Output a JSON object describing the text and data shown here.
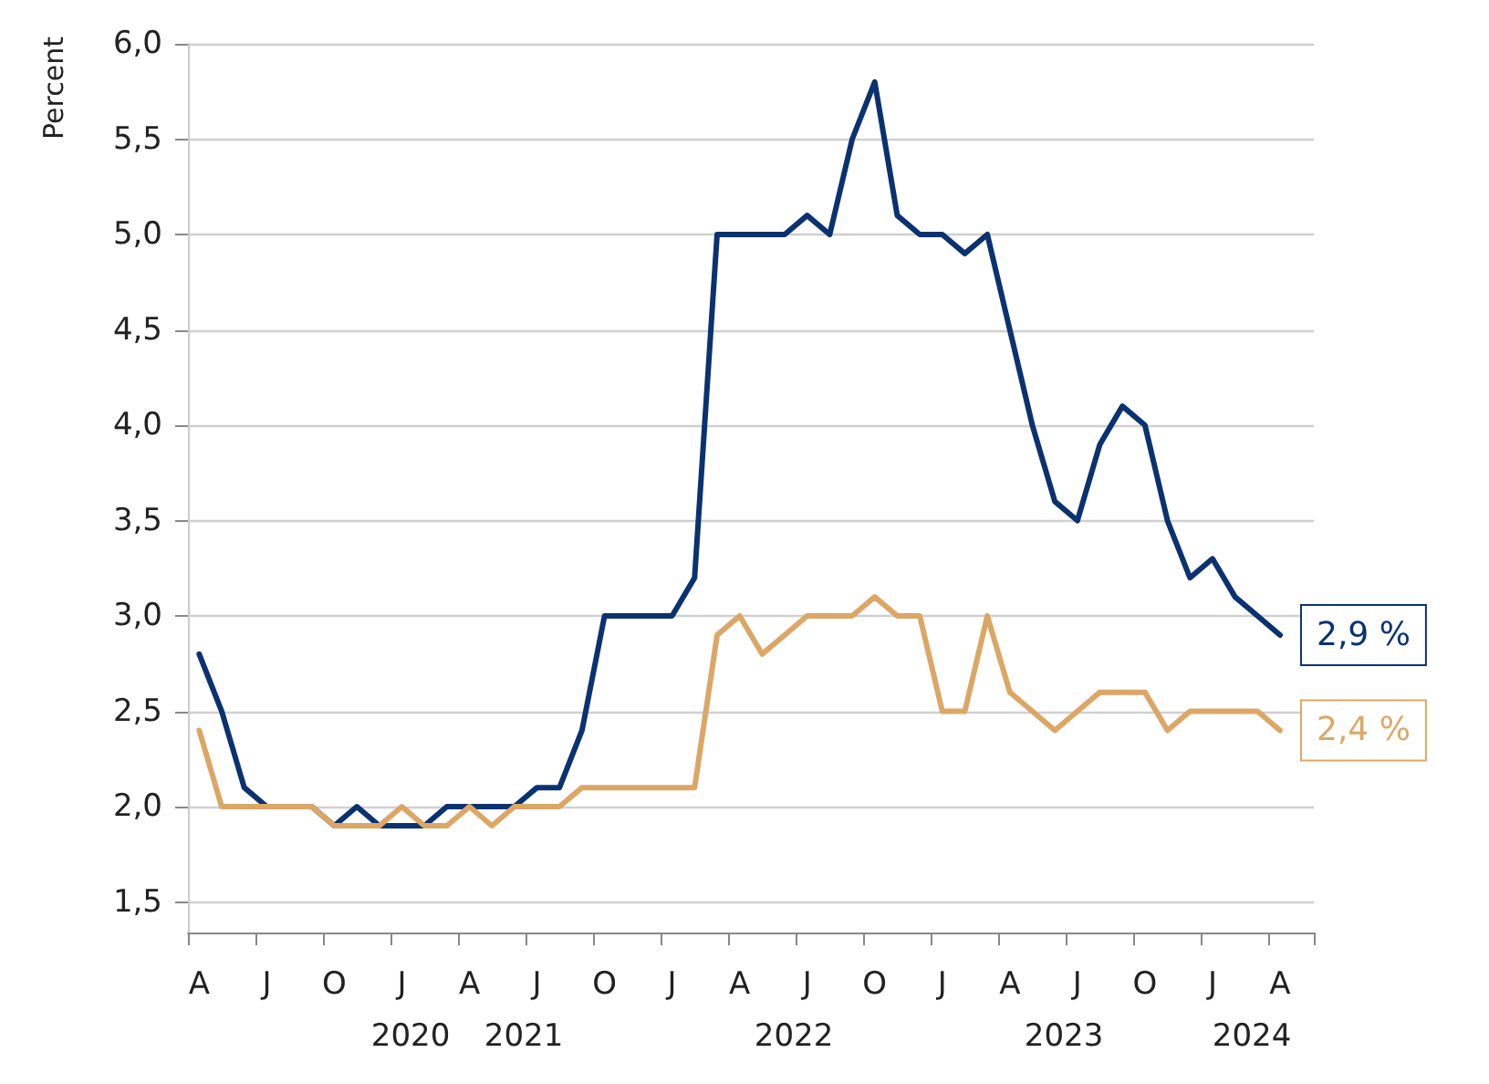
{
  "chart_data": {
    "type": "line",
    "ylabel": "Percent",
    "categories": [
      "A",
      null,
      null,
      "J",
      null,
      null,
      "O",
      null,
      null,
      "J",
      null,
      null,
      "A",
      null,
      null,
      "J",
      null,
      null,
      "O",
      null,
      null,
      "J",
      null,
      null,
      "A",
      null,
      null,
      "J",
      null,
      null,
      "O",
      null,
      null,
      "J",
      null,
      null,
      "A",
      null,
      null,
      "J",
      null,
      null,
      "O",
      null,
      null,
      "J",
      null,
      null,
      "A",
      null
    ],
    "series": [
      {
        "color": "#0b3270",
        "values": [
          2.8,
          2.5,
          2.1,
          2.0,
          2.0,
          2.0,
          1.9,
          2.0,
          1.9,
          1.9,
          1.9,
          2.0,
          2.0,
          2.0,
          2.0,
          2.1,
          2.1,
          2.4,
          3.0,
          3.0,
          3.0,
          3.0,
          3.2,
          5.0,
          5.0,
          5.0,
          5.0,
          5.1,
          5.0,
          5.5,
          5.8,
          5.1,
          5.0,
          5.0,
          4.9,
          5.0,
          4.5,
          4.0,
          3.6,
          3.5,
          3.9,
          4.1,
          4.0,
          3.5,
          3.2,
          3.3,
          3.1,
          3.0,
          2.9,
          null
        ],
        "value_labels": [
          null,
          null,
          null,
          null,
          null,
          null,
          null,
          null,
          null,
          null,
          null,
          null,
          null,
          null,
          null,
          null,
          null,
          null,
          null,
          null,
          null,
          null,
          null,
          null,
          null,
          null,
          null,
          null,
          null,
          null,
          null,
          null,
          null,
          null,
          null,
          null,
          null,
          null,
          null,
          null,
          null,
          null,
          null,
          null,
          null,
          null,
          null,
          null,
          "2,9 %",
          null
        ]
      },
      {
        "color": "#dca766",
        "values": [
          2.4,
          2.0,
          2.0,
          2.0,
          2.0,
          2.0,
          1.9,
          1.9,
          1.9,
          2.0,
          1.9,
          1.9,
          2.0,
          1.9,
          2.0,
          2.0,
          2.0,
          2.1,
          2.1,
          2.1,
          2.1,
          2.1,
          2.1,
          2.9,
          3.0,
          2.8,
          2.9,
          3.0,
          3.0,
          3.0,
          3.1,
          3.0,
          3.0,
          2.5,
          2.5,
          3.0,
          2.6,
          2.5,
          2.4,
          2.5,
          2.6,
          2.6,
          2.6,
          2.4,
          2.5,
          2.5,
          2.5,
          2.5,
          2.4,
          null
        ],
        "value_labels": [
          null,
          null,
          null,
          null,
          null,
          null,
          null,
          null,
          null,
          null,
          null,
          null,
          null,
          null,
          null,
          null,
          null,
          null,
          null,
          null,
          null,
          null,
          null,
          null,
          null,
          null,
          null,
          null,
          null,
          null,
          null,
          null,
          null,
          null,
          null,
          null,
          null,
          null,
          null,
          null,
          null,
          null,
          null,
          null,
          null,
          null,
          null,
          null,
          "2,4 %",
          null
        ]
      }
    ],
    "ylim": [
      1.34,
      6.0
    ],
    "yticks": [
      {
        "value": 1.5,
        "label": "1,5"
      },
      {
        "value": 2.0,
        "label": "2,0"
      },
      {
        "value": 2.5,
        "label": "2,5"
      },
      {
        "value": 3.0,
        "label": "3,0"
      },
      {
        "value": 3.5,
        "label": "3,5"
      },
      {
        "value": 4.0,
        "label": "4,0"
      },
      {
        "value": 4.5,
        "label": "4,5"
      },
      {
        "value": 5.0,
        "label": "5,0"
      },
      {
        "value": 5.5,
        "label": "5,5"
      },
      {
        "value": 6.0,
        "label": "6,0"
      }
    ],
    "annotations": [
      "2020",
      "2021",
      "2022",
      "2023",
      "2024"
    ],
    "grid": "y",
    "marker": "none",
    "line_style": "solid"
  }
}
